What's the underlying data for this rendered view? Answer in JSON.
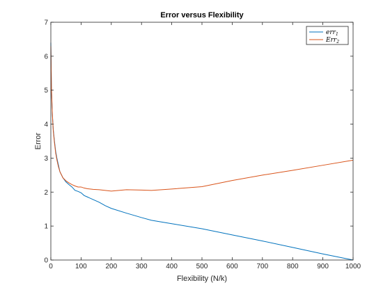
{
  "chart_data": {
    "type": "line",
    "title": "Error versus Flexibility",
    "xlabel": "Flexibility (N/k)",
    "ylabel": "Error",
    "xlim": [
      0,
      1000
    ],
    "ylim": [
      0,
      7
    ],
    "xticks": [
      0,
      100,
      200,
      300,
      400,
      500,
      600,
      700,
      800,
      900,
      1000
    ],
    "yticks": [
      0,
      1,
      2,
      3,
      4,
      5,
      6,
      7
    ],
    "grid": false,
    "legend": "top-right",
    "series": [
      {
        "name": "err_1",
        "legend_base": "err",
        "legend_sub": "1",
        "color": "#0072BD",
        "x": [
          0,
          2,
          5,
          8,
          12,
          16,
          20,
          25,
          30,
          40,
          50,
          60,
          70,
          80,
          90,
          100,
          110,
          120,
          140,
          160,
          180,
          200,
          250,
          300,
          333,
          400,
          500,
          600,
          700,
          800,
          900,
          1000
        ],
        "y": [
          6.4,
          5.0,
          4.3,
          3.85,
          3.5,
          3.2,
          3.0,
          2.8,
          2.6,
          2.42,
          2.3,
          2.22,
          2.15,
          2.05,
          2.02,
          1.98,
          1.9,
          1.86,
          1.78,
          1.7,
          1.6,
          1.52,
          1.38,
          1.25,
          1.17,
          1.07,
          0.92,
          0.74,
          0.56,
          0.37,
          0.18,
          0.0
        ]
      },
      {
        "name": "Err_2",
        "legend_base": "Err",
        "legend_sub": "2",
        "color": "#D95319",
        "x": [
          0,
          2,
          5,
          8,
          12,
          16,
          20,
          25,
          30,
          40,
          50,
          60,
          70,
          80,
          90,
          100,
          110,
          120,
          140,
          160,
          180,
          200,
          250,
          300,
          333,
          400,
          500,
          600,
          700,
          800,
          900,
          1000
        ],
        "y": [
          6.3,
          5.1,
          4.3,
          3.8,
          3.45,
          3.15,
          2.95,
          2.75,
          2.6,
          2.42,
          2.33,
          2.27,
          2.22,
          2.18,
          2.15,
          2.15,
          2.12,
          2.1,
          2.08,
          2.07,
          2.05,
          2.03,
          2.07,
          2.06,
          2.05,
          2.09,
          2.16,
          2.34,
          2.5,
          2.64,
          2.79,
          2.94
        ]
      }
    ]
  }
}
